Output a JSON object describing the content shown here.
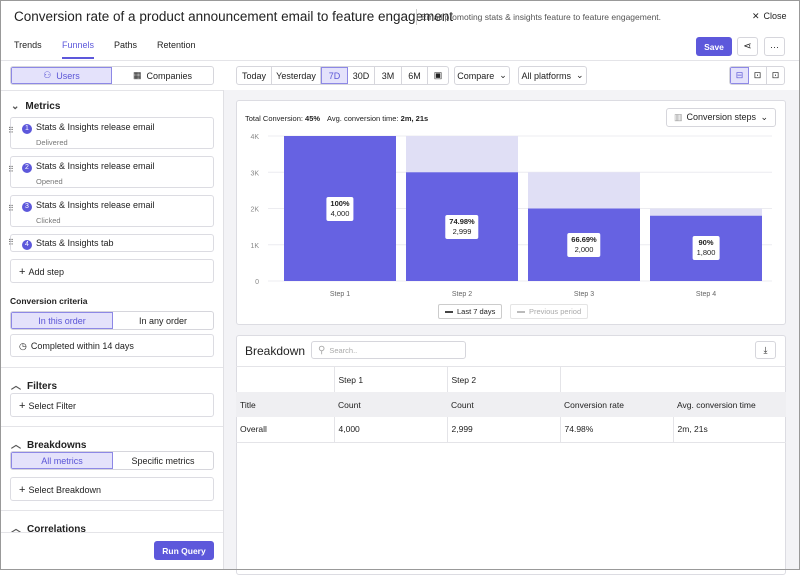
{
  "header": {
    "title": "Conversion rate of a product announcement email to feature engagement",
    "description": "Email promoting stats & insights feature to feature engagement.",
    "close_label": "Close"
  },
  "tabs": [
    {
      "label": "Trends"
    },
    {
      "label": "Funnels",
      "active": true
    },
    {
      "label": "Paths"
    },
    {
      "label": "Retention"
    }
  ],
  "actions": {
    "save_label": "Save",
    "more_label": "···"
  },
  "sidebar": {
    "entity_toggle": [
      {
        "label": "Users",
        "active": true
      },
      {
        "label": "Companies"
      }
    ],
    "metrics_title": "Metrics",
    "steps": [
      {
        "n": "1",
        "name": "Stats & Insights release email",
        "sub": "Delivered"
      },
      {
        "n": "2",
        "name": "Stats & Insights release email",
        "sub": "Opened"
      },
      {
        "n": "3",
        "name": "Stats & Insights release email",
        "sub": "Clicked"
      },
      {
        "n": "4",
        "name": "Stats & Insights tab",
        "sub": ""
      }
    ],
    "add_step": "Add step",
    "criteria_title": "Conversion criteria",
    "order_toggle": [
      {
        "label": "In this order",
        "active": true
      },
      {
        "label": "In any order"
      }
    ],
    "completed_within": "Completed within 14 days",
    "filters_title": "Filters",
    "select_filter": "Select Filter",
    "breakdowns_title": "Breakdowns",
    "breakdown_toggle": [
      {
        "label": "All metrics",
        "active": true
      },
      {
        "label": "Specific metrics"
      }
    ],
    "select_breakdown": "Select Breakdown",
    "correlations_title": "Correlations",
    "run_query": "Run Query"
  },
  "toolbar": {
    "ranges": [
      {
        "label": "Today"
      },
      {
        "label": "Yesterday"
      },
      {
        "label": "7D",
        "active": true
      },
      {
        "label": "30D"
      },
      {
        "label": "3M"
      },
      {
        "label": "6M"
      }
    ],
    "compare": "Compare",
    "platforms": "All platforms"
  },
  "summary": {
    "total_label": "Total Conversion:",
    "total_value": "45%",
    "avg_label": "Avg. conversion time:",
    "avg_value": "2m, 21s",
    "view_select": "Conversion steps"
  },
  "chart_data": {
    "type": "bar",
    "categories": [
      "Step 1",
      "Step 2",
      "Step 3",
      "Step 4"
    ],
    "y_ticks": [
      "0",
      "1K",
      "2K",
      "3K",
      "4K"
    ],
    "ylim": [
      0,
      4000
    ],
    "grid": true,
    "legend": "bottom",
    "series": [
      {
        "name": "Last 7 days",
        "values": [
          4000,
          2999,
          2000,
          1800
        ],
        "percents": [
          "100%",
          "74.98%",
          "66.69%",
          "90%"
        ],
        "labels": [
          "4,000",
          "2,999",
          "2,000",
          "1,800"
        ],
        "color": "#6662e2"
      },
      {
        "name": "Previous period",
        "values": [
          4000,
          4000,
          3000,
          2000
        ],
        "color": "#e0dff5"
      }
    ]
  },
  "breakdown": {
    "title": "Breakdown",
    "search_placeholder": "Search..",
    "group_headers": [
      "",
      "Step 1",
      "Step 2",
      "",
      ""
    ],
    "columns": [
      "Title",
      "Count",
      "Count",
      "Conversion rate",
      "Avg. conversion time"
    ],
    "rows": [
      [
        "Overall",
        "4,000",
        "2,999",
        "74.98%",
        "2m, 21s"
      ]
    ]
  },
  "colors": {
    "accent": "#5d58db",
    "accent_light": "#e4e2fb",
    "background": "#f3f3f6"
  }
}
